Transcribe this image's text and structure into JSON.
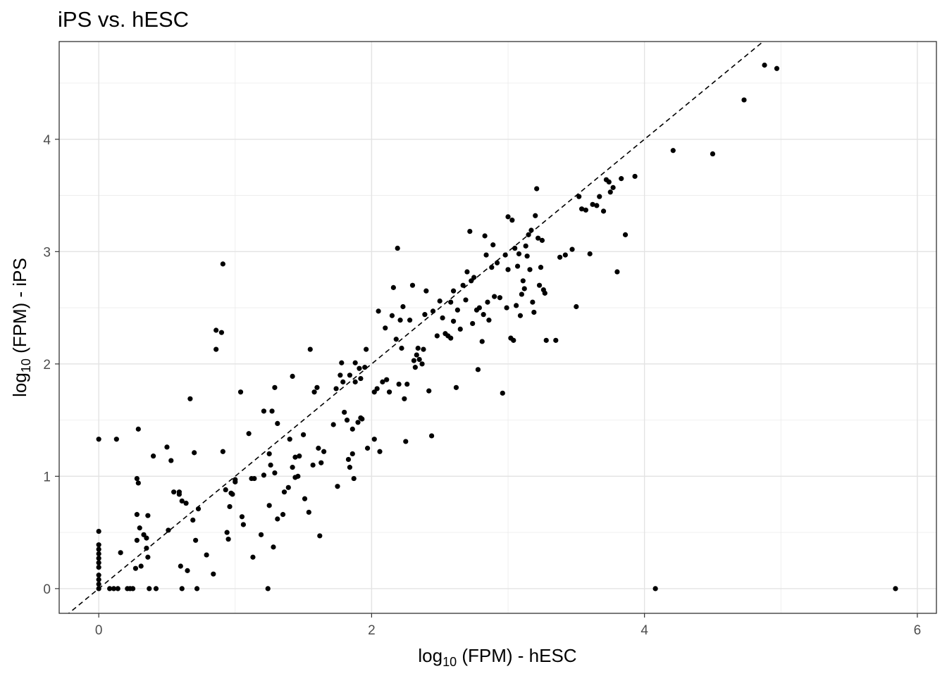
{
  "chart_data": {
    "type": "scatter",
    "title": "iPS vs. hESC",
    "xlabel": {
      "prefix": "log",
      "sub": "10",
      "suffix": " (FPM) - hESC"
    },
    "ylabel": {
      "prefix": "log",
      "sub": "10",
      "suffix": " (FPM) - iPS"
    },
    "xlim": [
      -0.29,
      6.14
    ],
    "ylim": [
      -0.22,
      4.87
    ],
    "x_ticks": [
      0,
      2,
      4,
      6
    ],
    "y_ticks": [
      0,
      1,
      2,
      3,
      4
    ],
    "grid": true,
    "reference_line": {
      "style": "dashed",
      "slope": 1,
      "intercept": 0
    },
    "point_color": "#000000",
    "points": [
      [
        0,
        0
      ],
      [
        0,
        0.04
      ],
      [
        0,
        0.08
      ],
      [
        0,
        0.12
      ],
      [
        0,
        0.19
      ],
      [
        0,
        0.23
      ],
      [
        0,
        0.27
      ],
      [
        0,
        0.31
      ],
      [
        0,
        0.35
      ],
      [
        0,
        0.39
      ],
      [
        0,
        0.51
      ],
      [
        0,
        1.33
      ],
      [
        0.08,
        0
      ],
      [
        0.11,
        0
      ],
      [
        0.14,
        0
      ],
      [
        0.13,
        1.33
      ],
      [
        0.16,
        0.32
      ],
      [
        0.21,
        0
      ],
      [
        0.23,
        0
      ],
      [
        0.25,
        0
      ],
      [
        0.27,
        0.18
      ],
      [
        0.28,
        0.43
      ],
      [
        0.28,
        0.66
      ],
      [
        0.28,
        0.98
      ],
      [
        0.29,
        0.94
      ],
      [
        0.3,
        0.54
      ],
      [
        0.29,
        1.42
      ],
      [
        0.31,
        0.2
      ],
      [
        0.33,
        0.48
      ],
      [
        0.35,
        0.36
      ],
      [
        0.35,
        0.45
      ],
      [
        0.36,
        0.65
      ],
      [
        0.36,
        0.28
      ],
      [
        0.37,
        0
      ],
      [
        0.4,
        1.18
      ],
      [
        0.42,
        0
      ],
      [
        0.5,
        1.26
      ],
      [
        0.51,
        0.52
      ],
      [
        0.53,
        1.14
      ],
      [
        0.55,
        0.86
      ],
      [
        0.59,
        0.86
      ],
      [
        0.59,
        0.84
      ],
      [
        0.6,
        0.2
      ],
      [
        0.61,
        0
      ],
      [
        0.61,
        0.78
      ],
      [
        0.64,
        0.76
      ],
      [
        0.65,
        0.16
      ],
      [
        0.67,
        1.69
      ],
      [
        0.69,
        0.61
      ],
      [
        0.7,
        1.21
      ],
      [
        0.71,
        0.43
      ],
      [
        0.72,
        0
      ],
      [
        0.73,
        0.71
      ],
      [
        0.79,
        0.3
      ],
      [
        0.84,
        0.13
      ],
      [
        0.86,
        2.13
      ],
      [
        0.86,
        2.3
      ],
      [
        0.9,
        2.28
      ],
      [
        0.91,
        1.22
      ],
      [
        0.91,
        2.89
      ],
      [
        0.93,
        0.88
      ],
      [
        0.94,
        0.5
      ],
      [
        0.95,
        0.44
      ],
      [
        0.96,
        0.73
      ],
      [
        0.97,
        0.85
      ],
      [
        0.98,
        0.84
      ],
      [
        1,
        0.95
      ],
      [
        1,
        0.97
      ],
      [
        1.04,
        1.75
      ],
      [
        1.05,
        0.64
      ],
      [
        1.06,
        0.57
      ],
      [
        1.1,
        1.38
      ],
      [
        1.12,
        0.98
      ],
      [
        1.13,
        0.28
      ],
      [
        1.14,
        0.98
      ],
      [
        1.19,
        0.48
      ],
      [
        1.21,
        1.01
      ],
      [
        1.21,
        1.58
      ],
      [
        1.24,
        0
      ],
      [
        1.25,
        0.74
      ],
      [
        1.25,
        1.2
      ],
      [
        1.26,
        1.1
      ],
      [
        1.27,
        1.58
      ],
      [
        1.28,
        0.37
      ],
      [
        1.29,
        1.79
      ],
      [
        1.29,
        1.03
      ],
      [
        1.31,
        1.47
      ],
      [
        1.31,
        0.62
      ],
      [
        1.35,
        0.66
      ],
      [
        1.36,
        0.86
      ],
      [
        1.39,
        0.9
      ],
      [
        1.4,
        1.33
      ],
      [
        1.42,
        1.89
      ],
      [
        1.42,
        1.08
      ],
      [
        1.44,
        1.17
      ],
      [
        1.44,
        0.99
      ],
      [
        1.46,
        1.0
      ],
      [
        1.47,
        1.18
      ],
      [
        1.5,
        1.37
      ],
      [
        1.51,
        0.8
      ],
      [
        1.54,
        0.68
      ],
      [
        1.55,
        2.13
      ],
      [
        1.57,
        1.1
      ],
      [
        1.58,
        1.75
      ],
      [
        1.6,
        1.79
      ],
      [
        1.61,
        1.25
      ],
      [
        1.62,
        0.47
      ],
      [
        1.63,
        1.12
      ],
      [
        1.65,
        1.22
      ],
      [
        1.72,
        1.46
      ],
      [
        1.74,
        1.78
      ],
      [
        1.75,
        0.91
      ],
      [
        1.77,
        1.9
      ],
      [
        1.78,
        2.01
      ],
      [
        1.79,
        1.84
      ],
      [
        1.8,
        1.57
      ],
      [
        1.82,
        1.5
      ],
      [
        1.83,
        1.15
      ],
      [
        1.84,
        1.9
      ],
      [
        1.84,
        1.08
      ],
      [
        1.86,
        1.2
      ],
      [
        1.86,
        1.42
      ],
      [
        1.87,
        0.98
      ],
      [
        1.88,
        1.84
      ],
      [
        1.88,
        2.01
      ],
      [
        1.9,
        1.48
      ],
      [
        1.91,
        1.96
      ],
      [
        1.92,
        1.52
      ],
      [
        1.92,
        1.87
      ],
      [
        1.93,
        1.51
      ],
      [
        1.95,
        1.97
      ],
      [
        1.96,
        2.13
      ],
      [
        1.97,
        1.25
      ],
      [
        2.02,
        1.33
      ],
      [
        2.02,
        1.75
      ],
      [
        2.04,
        1.78
      ],
      [
        2.05,
        2.47
      ],
      [
        2.06,
        1.22
      ],
      [
        2.08,
        1.84
      ],
      [
        2.1,
        2.32
      ],
      [
        2.11,
        1.86
      ],
      [
        2.13,
        1.75
      ],
      [
        2.15,
        2.43
      ],
      [
        2.16,
        2.68
      ],
      [
        2.18,
        2.22
      ],
      [
        2.19,
        3.03
      ],
      [
        2.2,
        1.82
      ],
      [
        2.21,
        2.39
      ],
      [
        2.22,
        2.14
      ],
      [
        2.23,
        2.51
      ],
      [
        2.24,
        1.69
      ],
      [
        2.25,
        1.31
      ],
      [
        2.26,
        1.82
      ],
      [
        2.28,
        2.39
      ],
      [
        2.3,
        2.7
      ],
      [
        2.31,
        2.03
      ],
      [
        2.32,
        1.97
      ],
      [
        2.33,
        2.08
      ],
      [
        2.34,
        2.14
      ],
      [
        2.35,
        2.04
      ],
      [
        2.37,
        2.0
      ],
      [
        2.38,
        2.13
      ],
      [
        2.39,
        2.44
      ],
      [
        2.4,
        2.65
      ],
      [
        2.42,
        1.76
      ],
      [
        2.44,
        1.36
      ],
      [
        2.45,
        2.47
      ],
      [
        2.48,
        2.25
      ],
      [
        2.5,
        2.56
      ],
      [
        2.52,
        2.41
      ],
      [
        2.54,
        2.27
      ],
      [
        2.56,
        2.25
      ],
      [
        2.58,
        2.55
      ],
      [
        2.58,
        2.23
      ],
      [
        2.6,
        2.65
      ],
      [
        2.6,
        2.38
      ],
      [
        2.62,
        1.79
      ],
      [
        2.63,
        2.48
      ],
      [
        2.65,
        2.31
      ],
      [
        2.67,
        2.7
      ],
      [
        2.69,
        2.57
      ],
      [
        2.7,
        2.82
      ],
      [
        2.72,
        3.18
      ],
      [
        2.73,
        2.74
      ],
      [
        2.74,
        2.36
      ],
      [
        2.75,
        2.77
      ],
      [
        2.77,
        2.48
      ],
      [
        2.78,
        1.95
      ],
      [
        2.79,
        2.5
      ],
      [
        2.81,
        2.2
      ],
      [
        2.82,
        2.44
      ],
      [
        2.83,
        3.14
      ],
      [
        2.84,
        2.97
      ],
      [
        2.85,
        2.55
      ],
      [
        2.86,
        2.39
      ],
      [
        2.88,
        2.86
      ],
      [
        2.89,
        3.06
      ],
      [
        2.9,
        2.6
      ],
      [
        2.92,
        2.9
      ],
      [
        2.94,
        2.59
      ],
      [
        2.96,
        1.74
      ],
      [
        2.98,
        2.97
      ],
      [
        2.99,
        2.5
      ],
      [
        3,
        3.31
      ],
      [
        3,
        2.84
      ],
      [
        3.02,
        2.23
      ],
      [
        3.03,
        3.28
      ],
      [
        3.04,
        2.21
      ],
      [
        3.05,
        3.03
      ],
      [
        3.06,
        2.52
      ],
      [
        3.07,
        2.87
      ],
      [
        3.08,
        2.98
      ],
      [
        3.09,
        2.43
      ],
      [
        3.1,
        2.62
      ],
      [
        3.11,
        2.74
      ],
      [
        3.12,
        2.67
      ],
      [
        3.13,
        3.05
      ],
      [
        3.14,
        2.96
      ],
      [
        3.15,
        3.15
      ],
      [
        3.16,
        2.84
      ],
      [
        3.17,
        3.19
      ],
      [
        3.18,
        2.55
      ],
      [
        3.19,
        2.46
      ],
      [
        3.2,
        3.32
      ],
      [
        3.21,
        3.56
      ],
      [
        3.22,
        3.12
      ],
      [
        3.23,
        2.7
      ],
      [
        3.24,
        2.86
      ],
      [
        3.25,
        3.1
      ],
      [
        3.26,
        2.66
      ],
      [
        3.27,
        2.63
      ],
      [
        3.28,
        2.21
      ],
      [
        3.35,
        2.21
      ],
      [
        3.38,
        2.95
      ],
      [
        3.42,
        2.97
      ],
      [
        3.47,
        3.02
      ],
      [
        3.5,
        2.51
      ],
      [
        3.52,
        3.49
      ],
      [
        3.54,
        3.38
      ],
      [
        3.57,
        3.37
      ],
      [
        3.6,
        2.98
      ],
      [
        3.62,
        3.42
      ],
      [
        3.65,
        3.41
      ],
      [
        3.67,
        3.49
      ],
      [
        3.7,
        3.36
      ],
      [
        3.72,
        3.64
      ],
      [
        3.74,
        3.62
      ],
      [
        3.75,
        3.53
      ],
      [
        3.77,
        3.57
      ],
      [
        3.8,
        2.82
      ],
      [
        3.83,
        3.65
      ],
      [
        3.86,
        3.15
      ],
      [
        3.93,
        3.67
      ],
      [
        4.08,
        0
      ],
      [
        4.21,
        3.9
      ],
      [
        4.5,
        3.87
      ],
      [
        4.73,
        4.35
      ],
      [
        4.88,
        4.66
      ],
      [
        4.97,
        4.63
      ],
      [
        5.84,
        0
      ]
    ]
  }
}
